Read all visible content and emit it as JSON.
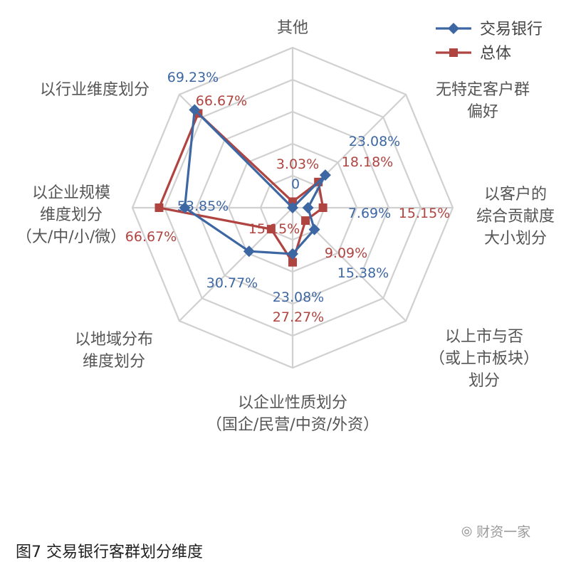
{
  "caption": "图7  交易银行客群划分维度",
  "watermark": "财资一家",
  "chart_data": {
    "type": "radar",
    "title": "",
    "axis_max": 80,
    "axes": [
      {
        "label_lines": [
          "其他"
        ]
      },
      {
        "label_lines": [
          "无特定客户群",
          "偏好"
        ]
      },
      {
        "label_lines": [
          "以客户的",
          "综合贡献度",
          "大小划分"
        ]
      },
      {
        "label_lines": [
          "以上市与否",
          "（或上市板块）",
          "划分"
        ]
      },
      {
        "label_lines": [
          "以企业性质划分",
          "（国企/民营/中资/外资）"
        ]
      },
      {
        "label_lines": [
          "以地域分布",
          "维度划分"
        ]
      },
      {
        "label_lines": [
          "以企业规模",
          "维度划分",
          "（大/中/小/微）"
        ]
      },
      {
        "label_lines": [
          "以行业维度划分"
        ]
      }
    ],
    "series": [
      {
        "name": "交易银行",
        "color": "#3d67a3",
        "marker": "diamond",
        "values": [
          0,
          23.08,
          7.69,
          15.38,
          23.08,
          30.77,
          53.85,
          69.23
        ],
        "labels": [
          "0",
          "23.08%",
          "7.69%",
          "15.38%",
          "23.08%",
          "30.77%",
          "53.85%",
          "69.23%"
        ]
      },
      {
        "name": "总体",
        "color": "#b04440",
        "marker": "square",
        "values": [
          3.03,
          18.18,
          15.15,
          9.09,
          27.27,
          15.15,
          66.67,
          66.67
        ],
        "labels": [
          "3.03%",
          "18.18%",
          "15.15%",
          "9.09%",
          "27.27%",
          "15.15%",
          "66.67%",
          "66.67%"
        ]
      }
    ],
    "legend_position": "top-right"
  }
}
